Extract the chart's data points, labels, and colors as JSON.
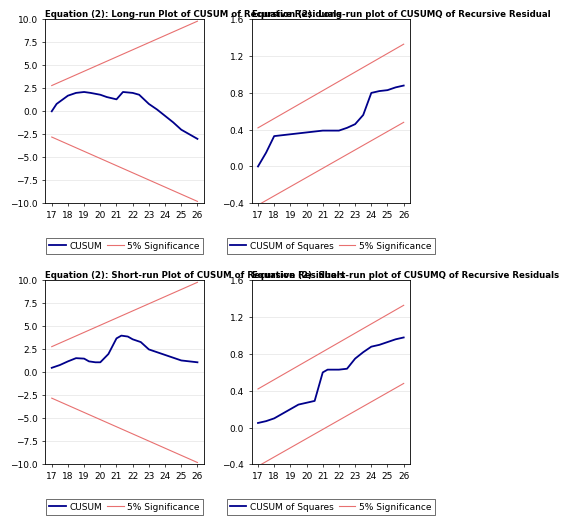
{
  "title_top_left": "Equation (2): Long-run Plot of CUSUM of Recursive Residuals",
  "title_top_right": "Equation (2): Long-run plot of CUSUMQ of Recursive Residual",
  "title_bot_left": "Equation (2): Short-run Plot of CUSUM of Recursive Residuals",
  "title_bot_right": "Equation (2): Short-run plot of CUSUMQ of Recursive Residuals",
  "cusum_lr_x": [
    17,
    17.3,
    18,
    18.5,
    19,
    19.4,
    20,
    20.4,
    21,
    21.4,
    22,
    22.4,
    23,
    23.5,
    24,
    24.5,
    25,
    25.5,
    26
  ],
  "cusum_lr_y": [
    0.0,
    0.8,
    1.7,
    2.0,
    2.1,
    2.0,
    1.8,
    1.55,
    1.3,
    2.1,
    2.0,
    1.8,
    0.8,
    0.2,
    -0.5,
    -1.2,
    -2.0,
    -2.5,
    -3.0
  ],
  "cusumq_lr_x": [
    17,
    17.5,
    18,
    18.5,
    19,
    19.5,
    20,
    20.5,
    21,
    21.5,
    22,
    22.5,
    23,
    23.5,
    24,
    24.5,
    25,
    25.5,
    26
  ],
  "cusumq_lr_y": [
    0.0,
    0.15,
    0.33,
    0.34,
    0.35,
    0.36,
    0.37,
    0.38,
    0.39,
    0.39,
    0.39,
    0.42,
    0.46,
    0.56,
    0.8,
    0.82,
    0.83,
    0.86,
    0.88
  ],
  "cusum_sr_x": [
    17,
    17.5,
    18,
    18.5,
    19,
    19.3,
    19.7,
    20,
    20.5,
    21,
    21.3,
    21.7,
    22,
    22.5,
    23,
    23.5,
    24,
    24.5,
    25,
    25.5,
    26
  ],
  "cusum_sr_y": [
    0.5,
    0.8,
    1.2,
    1.55,
    1.5,
    1.2,
    1.1,
    1.1,
    2.0,
    3.7,
    4.0,
    3.9,
    3.6,
    3.3,
    2.5,
    2.2,
    1.9,
    1.6,
    1.3,
    1.2,
    1.1
  ],
  "cusumq_sr_x": [
    17,
    17.5,
    18,
    18.5,
    19,
    19.5,
    20,
    20.5,
    21,
    21.3,
    21.7,
    22,
    22.5,
    23,
    23.5,
    24,
    24.5,
    25,
    25.5,
    26
  ],
  "cusumq_sr_y": [
    0.05,
    0.07,
    0.1,
    0.15,
    0.2,
    0.25,
    0.27,
    0.29,
    0.6,
    0.63,
    0.63,
    0.63,
    0.64,
    0.75,
    0.82,
    0.88,
    0.9,
    0.93,
    0.96,
    0.98
  ],
  "cusum_sig_upper": [
    2.8,
    9.8
  ],
  "cusum_sig_lower": [
    -2.8,
    -9.8
  ],
  "cusum_ylim": [
    -10.0,
    10.0
  ],
  "cusum_yticks": [
    -10.0,
    -7.5,
    -5.0,
    -2.5,
    0.0,
    2.5,
    5.0,
    7.5,
    10.0
  ],
  "cusumq_lr_upper": [
    0.42,
    1.33
  ],
  "cusumq_lr_lower": [
    -0.42,
    0.48
  ],
  "cusumq_lr_ylim": [
    -0.4,
    1.6
  ],
  "cusumq_lr_yticks": [
    -0.4,
    0.0,
    0.4,
    0.8,
    1.2,
    1.6
  ],
  "cusumq_sr_upper": [
    0.42,
    1.33
  ],
  "cusumq_sr_lower": [
    -0.42,
    0.48
  ],
  "cusumq_sr_ylim": [
    -0.4,
    1.6
  ],
  "cusumq_sr_yticks": [
    -0.4,
    0.0,
    0.4,
    0.8,
    1.2,
    1.6
  ],
  "x_ticks": [
    17,
    18,
    19,
    20,
    21,
    22,
    23,
    24,
    25,
    26
  ],
  "x_lim": [
    16.6,
    26.4
  ],
  "line_color": "#00008B",
  "sig_color": "#E87070",
  "background": "#FFFFFF",
  "legend_cusum": "CUSUM",
  "legend_cusumq": "CUSUM of Squares",
  "legend_sig": "5% Significance",
  "title_fontsize": 6.2,
  "tick_fontsize": 6.5,
  "legend_fontsize": 6.5
}
